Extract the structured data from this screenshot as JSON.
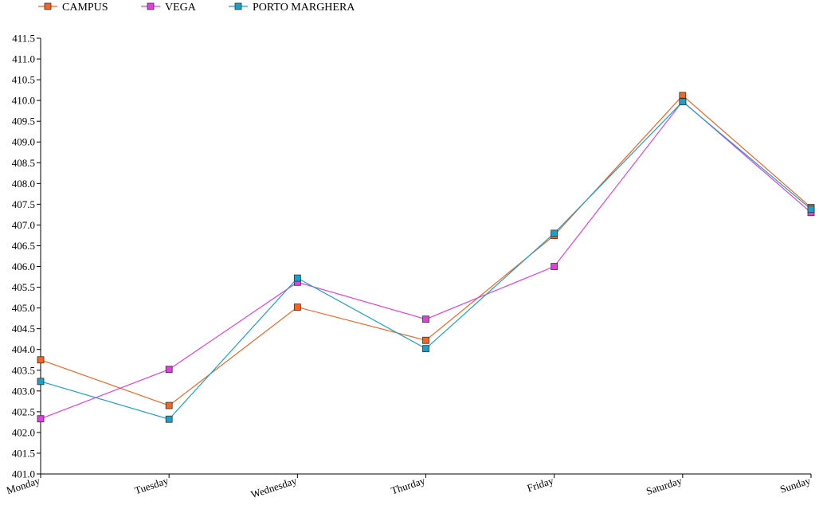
{
  "chart_data": {
    "type": "line",
    "categories": [
      "Monday",
      "Tuesday",
      "Wednesday",
      "Thurday",
      "Friday",
      "Saturday",
      "Sunday"
    ],
    "series": [
      {
        "name": "CAMPUS",
        "color": "#f26522",
        "values": [
          403.75,
          402.65,
          405.02,
          404.22,
          406.75,
          410.12,
          407.42
        ]
      },
      {
        "name": "VEGA",
        "color": "#e040e0",
        "values": [
          402.33,
          403.52,
          405.62,
          404.73,
          406.0,
          409.98,
          407.3
        ]
      },
      {
        "name": "PORTO MARGHERA",
        "color": "#1ba1c9",
        "values": [
          403.23,
          402.32,
          405.72,
          404.02,
          406.8,
          409.97,
          407.38
        ]
      }
    ],
    "ylim": [
      401.0,
      411.5
    ],
    "ytick_step": 0.5,
    "legend_position": "top-left",
    "grid": false
  }
}
